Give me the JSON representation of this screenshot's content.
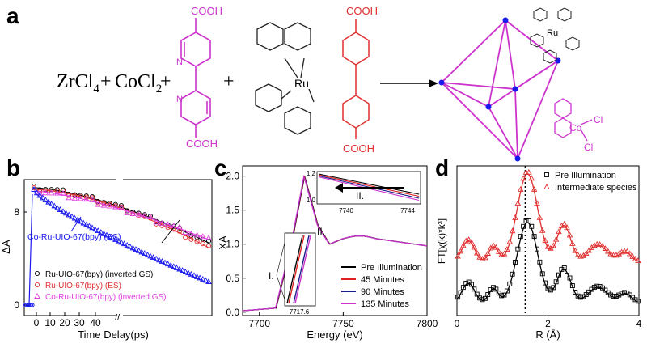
{
  "panels": {
    "a": "a",
    "b": "b",
    "c": "c",
    "d": "d"
  },
  "scheme": {
    "reactant_zr": "ZrCl",
    "reactant_zr_sub": "4",
    "plus1": "+",
    "reactant_co": "CoCl",
    "reactant_co_sub": "2",
    "plus2": "+",
    "plus3": "+",
    "cooh_top": "COOH",
    "cooh_bottom": "COOH",
    "ru_label": "Ru",
    "ru_cooh_top": "COOH",
    "ru_cooh_bottom": "COOH",
    "n_label": "N",
    "mof_ru": "Ru",
    "mof_co": "Co",
    "mof_cl1": "Cl",
    "mof_cl2": "Cl",
    "colors": {
      "magenta": "#cc33cc",
      "red": "#e03030",
      "blue": "#1a1aee",
      "black": "#000000"
    }
  },
  "chart_data": [
    {
      "panel": "b",
      "type": "scatter",
      "xlabel": "Time Delay(ps)",
      "ylabel": "ΔA",
      "x_ticks": [
        "0",
        "10",
        "20",
        "30",
        "40"
      ],
      "y_ticks": [
        "0",
        "8"
      ],
      "annotation": "Co-Ru-UIO-67(bpy) (ES)",
      "series": [
        {
          "name": "Ru-UIO-67(bpy) (inverted GS)",
          "color": "#000000",
          "marker": "circle"
        },
        {
          "name": "Ru-UIO-67(bpy) (ES)",
          "color": "#e03030",
          "marker": "circle"
        },
        {
          "name": "Co-Ru-UIO-67(bpy) (inverted GS)",
          "color": "#e040e0",
          "marker": "triangle"
        }
      ]
    },
    {
      "panel": "c",
      "type": "line",
      "xlabel": "Energy (eV)",
      "ylabel": "XA",
      "x_ticks": [
        "7700",
        "7750",
        "7800"
      ],
      "y_ticks": [
        "0.0",
        "0.5",
        "1.0",
        "1.5",
        "2.0"
      ],
      "xlim": [
        7690,
        7800
      ],
      "ylim": [
        -0.05,
        2.15
      ],
      "inset_top": {
        "x_ticks": [
          "7740",
          "7744"
        ],
        "y_ticks": [
          "1.0",
          "1.2"
        ],
        "label": "II."
      },
      "inset_bottom": {
        "x_ticks": [
          "7717.6"
        ],
        "label": "I."
      },
      "main_label": "II.",
      "series": [
        {
          "name": "Pre Illumination",
          "color": "#000000"
        },
        {
          "name": "45 Minutes",
          "color": "#e02020"
        },
        {
          "name": "90 Minutes",
          "color": "#1a1a8c"
        },
        {
          "name": "135 Minutes",
          "color": "#cc33cc"
        }
      ]
    },
    {
      "panel": "d",
      "type": "line",
      "xlabel": "R (Å)",
      "ylabel": "FT[χ(k)*k³]",
      "x_ticks": [
        "0",
        "2",
        "4"
      ],
      "xlim": [
        0,
        4
      ],
      "series": [
        {
          "name": "Pre Illumination",
          "color": "#000000",
          "marker": "square"
        },
        {
          "name": "Intermediate species",
          "color": "#e03030",
          "marker": "triangle"
        }
      ]
    }
  ]
}
